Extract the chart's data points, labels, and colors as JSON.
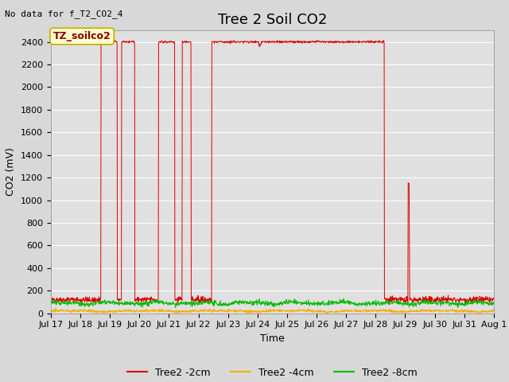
{
  "title": "Tree 2 Soil CO2",
  "top_left_text": "No data for f_T2_CO2_4",
  "xlabel": "Time",
  "ylabel": "CO2 (mV)",
  "ylim": [
    0,
    2500
  ],
  "yticks": [
    0,
    200,
    400,
    600,
    800,
    1000,
    1200,
    1400,
    1600,
    1800,
    2000,
    2200,
    2400
  ],
  "background_color": "#d8d8d8",
  "plot_bg_color": "#e0e0e0",
  "legend_label_box": "TZ_soilco2",
  "legend_box_color": "#ffffcc",
  "legend_box_edge": "#ccaa00",
  "series": [
    {
      "label": "Tree2 -2cm",
      "color": "#dd0000"
    },
    {
      "label": "Tree2 -4cm",
      "color": "#ffaa00"
    },
    {
      "label": "Tree2 -8cm",
      "color": "#00bb00"
    }
  ],
  "xtick_labels": [
    "Jul 17",
    "Jul 18",
    "Jul 19",
    "Jul 20",
    "Jul 21",
    "Jul 22",
    "Jul 23",
    "Jul 24",
    "Jul 25",
    "Jul 26",
    "Jul 27",
    "Jul 28",
    "Jul 29",
    "Jul 30",
    "Jul 31",
    "Aug 1"
  ],
  "grid_color": "#ffffff",
  "title_fontsize": 13,
  "axis_label_fontsize": 9,
  "tick_fontsize": 8,
  "legend_fontsize": 9
}
